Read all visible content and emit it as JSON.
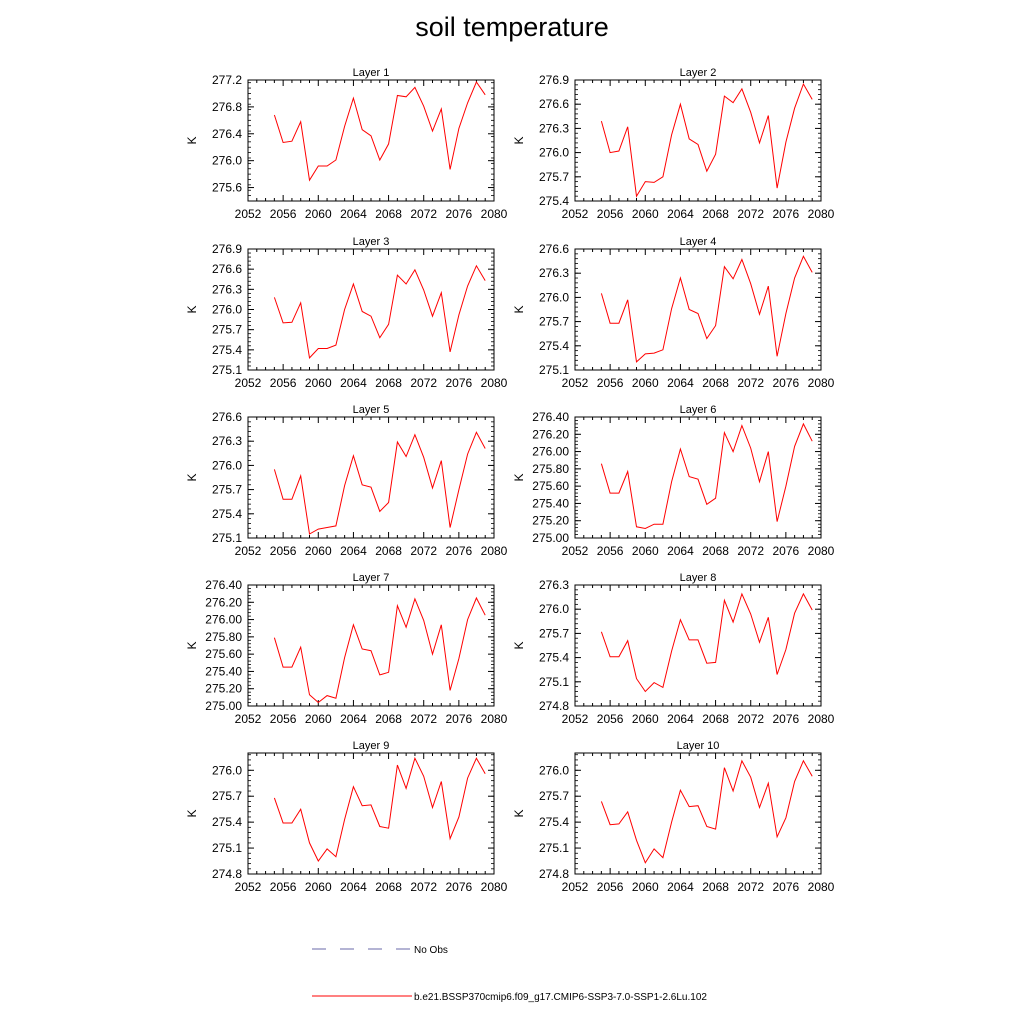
{
  "title": "soil temperature",
  "colors": {
    "model_line": "#ff0000",
    "obs_line": "#6a6aaa",
    "axis": "#000000"
  },
  "legend": {
    "obs_label": "No Obs",
    "model_label": "b.e21.BSSP370cmip6.f09_g17.CMIP6-SSP3-7.0-SSP1-2.6Lu.102"
  },
  "chart_data": [
    {
      "type": "line",
      "title": "Layer 1",
      "ylabel": "K",
      "xlim": [
        2052,
        2080
      ],
      "xticks": [
        "2052",
        "2056",
        "2060",
        "2064",
        "2068",
        "2072",
        "2076",
        "2080"
      ],
      "ylim": [
        275.4,
        277.2
      ],
      "yticks": [
        "275.6",
        "276.0",
        "276.4",
        "276.8",
        "277.2"
      ],
      "x": [
        2055,
        2056,
        2057,
        2058,
        2059,
        2060,
        2061,
        2062,
        2063,
        2064,
        2065,
        2066,
        2067,
        2068,
        2069,
        2070,
        2071,
        2072,
        2073,
        2074,
        2075,
        2076,
        2077,
        2078,
        2079
      ],
      "values": [
        276.68,
        276.27,
        276.29,
        276.58,
        275.71,
        275.92,
        275.92,
        276.01,
        276.51,
        276.93,
        276.46,
        276.37,
        276.01,
        276.25,
        276.97,
        276.95,
        277.09,
        276.81,
        276.44,
        276.77,
        275.87,
        276.48,
        276.86,
        277.17,
        276.98
      ]
    },
    {
      "type": "line",
      "title": "Layer 2",
      "ylabel": "K",
      "xlim": [
        2052,
        2080
      ],
      "xticks": [
        "2052",
        "2056",
        "2060",
        "2064",
        "2068",
        "2072",
        "2076",
        "2080"
      ],
      "ylim": [
        275.4,
        276.9
      ],
      "yticks": [
        "275.4",
        "275.7",
        "276.0",
        "276.3",
        "276.6",
        "276.9"
      ],
      "x": [
        2055,
        2056,
        2057,
        2058,
        2059,
        2060,
        2061,
        2062,
        2063,
        2064,
        2065,
        2066,
        2067,
        2068,
        2069,
        2070,
        2071,
        2072,
        2073,
        2074,
        2075,
        2076,
        2077,
        2078,
        2079
      ],
      "values": [
        276.39,
        276.0,
        276.02,
        276.32,
        275.46,
        275.64,
        275.63,
        275.7,
        276.22,
        276.6,
        276.17,
        276.1,
        275.77,
        275.98,
        276.7,
        276.62,
        276.79,
        276.5,
        276.12,
        276.46,
        275.56,
        276.13,
        276.55,
        276.85,
        276.66
      ]
    },
    {
      "type": "line",
      "title": "Layer 3",
      "ylabel": "K",
      "xlim": [
        2052,
        2080
      ],
      "xticks": [
        "2052",
        "2056",
        "2060",
        "2064",
        "2068",
        "2072",
        "2076",
        "2080"
      ],
      "ylim": [
        275.1,
        276.9
      ],
      "yticks": [
        "275.1",
        "275.4",
        "275.7",
        "276.0",
        "276.3",
        "276.6",
        "276.9"
      ],
      "x": [
        2055,
        2056,
        2057,
        2058,
        2059,
        2060,
        2061,
        2062,
        2063,
        2064,
        2065,
        2066,
        2067,
        2068,
        2069,
        2070,
        2071,
        2072,
        2073,
        2074,
        2075,
        2076,
        2077,
        2078,
        2079
      ],
      "values": [
        276.18,
        275.8,
        275.81,
        276.1,
        275.28,
        275.42,
        275.42,
        275.47,
        276.0,
        276.38,
        275.97,
        275.9,
        275.58,
        275.78,
        276.51,
        276.38,
        276.59,
        276.29,
        275.9,
        276.25,
        275.37,
        275.92,
        276.35,
        276.65,
        276.43
      ]
    },
    {
      "type": "line",
      "title": "Layer 4",
      "ylabel": "K",
      "xlim": [
        2052,
        2080
      ],
      "xticks": [
        "2052",
        "2056",
        "2060",
        "2064",
        "2068",
        "2072",
        "2076",
        "2080"
      ],
      "ylim": [
        275.1,
        276.6
      ],
      "yticks": [
        "275.1",
        "275.4",
        "275.7",
        "276.0",
        "276.3",
        "276.6"
      ],
      "x": [
        2055,
        2056,
        2057,
        2058,
        2059,
        2060,
        2061,
        2062,
        2063,
        2064,
        2065,
        2066,
        2067,
        2068,
        2069,
        2070,
        2071,
        2072,
        2073,
        2074,
        2075,
        2076,
        2077,
        2078,
        2079
      ],
      "values": [
        276.05,
        275.68,
        275.68,
        275.97,
        275.2,
        275.3,
        275.31,
        275.35,
        275.86,
        276.24,
        275.85,
        275.8,
        275.49,
        275.65,
        276.38,
        276.23,
        276.47,
        276.17,
        275.79,
        276.14,
        275.27,
        275.8,
        276.24,
        276.51,
        276.31
      ]
    },
    {
      "type": "line",
      "title": "Layer 5",
      "ylabel": "K",
      "xlim": [
        2052,
        2080
      ],
      "xticks": [
        "2052",
        "2056",
        "2060",
        "2064",
        "2068",
        "2072",
        "2076",
        "2080"
      ],
      "ylim": [
        275.1,
        276.6
      ],
      "yticks": [
        "275.1",
        "275.4",
        "275.7",
        "276.0",
        "276.3",
        "276.6"
      ],
      "x": [
        2055,
        2056,
        2057,
        2058,
        2059,
        2060,
        2061,
        2062,
        2063,
        2064,
        2065,
        2066,
        2067,
        2068,
        2069,
        2070,
        2071,
        2072,
        2073,
        2074,
        2075,
        2076,
        2077,
        2078,
        2079
      ],
      "values": [
        275.95,
        275.58,
        275.58,
        275.87,
        275.15,
        275.21,
        275.23,
        275.25,
        275.75,
        276.12,
        275.76,
        275.73,
        275.43,
        275.54,
        276.29,
        276.11,
        276.38,
        276.1,
        275.72,
        276.06,
        275.23,
        275.7,
        276.14,
        276.41,
        276.21
      ]
    },
    {
      "type": "line",
      "title": "Layer 6",
      "ylabel": "K",
      "xlim": [
        2052,
        2080
      ],
      "xticks": [
        "2052",
        "2056",
        "2060",
        "2064",
        "2068",
        "2072",
        "2076",
        "2080"
      ],
      "ylim": [
        275.0,
        276.4
      ],
      "yticks": [
        "275.00",
        "275.20",
        "275.40",
        "275.60",
        "275.80",
        "276.00",
        "276.20",
        "276.40"
      ],
      "x": [
        2055,
        2056,
        2057,
        2058,
        2059,
        2060,
        2061,
        2062,
        2063,
        2064,
        2065,
        2066,
        2067,
        2068,
        2069,
        2070,
        2071,
        2072,
        2073,
        2074,
        2075,
        2076,
        2077,
        2078,
        2079
      ],
      "values": [
        275.86,
        275.52,
        275.52,
        275.77,
        275.13,
        275.11,
        275.16,
        275.16,
        275.65,
        276.03,
        275.71,
        275.68,
        275.39,
        275.46,
        276.22,
        276.0,
        276.3,
        276.04,
        275.65,
        276.0,
        275.19,
        275.6,
        276.06,
        276.32,
        276.12
      ]
    },
    {
      "type": "line",
      "title": "Layer 7",
      "ylabel": "K",
      "xlim": [
        2052,
        2080
      ],
      "xticks": [
        "2052",
        "2056",
        "2060",
        "2064",
        "2068",
        "2072",
        "2076",
        "2080"
      ],
      "ylim": [
        275.0,
        276.4
      ],
      "yticks": [
        "275.00",
        "275.20",
        "275.40",
        "275.60",
        "275.80",
        "276.00",
        "276.20",
        "276.40"
      ],
      "x": [
        2055,
        2056,
        2057,
        2058,
        2059,
        2060,
        2061,
        2062,
        2063,
        2064,
        2065,
        2066,
        2067,
        2068,
        2069,
        2070,
        2071,
        2072,
        2073,
        2074,
        2075,
        2076,
        2077,
        2078,
        2079
      ],
      "values": [
        275.79,
        275.45,
        275.45,
        275.68,
        275.13,
        275.04,
        275.12,
        275.09,
        275.56,
        275.94,
        275.66,
        275.64,
        275.36,
        275.39,
        276.16,
        275.91,
        276.24,
        275.99,
        275.6,
        275.94,
        275.18,
        275.55,
        276.0,
        276.25,
        276.05
      ]
    },
    {
      "type": "line",
      "title": "Layer 8",
      "ylabel": "K",
      "xlim": [
        2052,
        2080
      ],
      "xticks": [
        "2052",
        "2056",
        "2060",
        "2064",
        "2068",
        "2072",
        "2076",
        "2080"
      ],
      "ylim": [
        274.8,
        276.3
      ],
      "yticks": [
        "274.8",
        "275.1",
        "275.4",
        "275.7",
        "276.0",
        "276.3"
      ],
      "x": [
        2055,
        2056,
        2057,
        2058,
        2059,
        2060,
        2061,
        2062,
        2063,
        2064,
        2065,
        2066,
        2067,
        2068,
        2069,
        2070,
        2071,
        2072,
        2073,
        2074,
        2075,
        2076,
        2077,
        2078,
        2079
      ],
      "values": [
        275.72,
        275.41,
        275.41,
        275.61,
        275.14,
        274.98,
        275.09,
        275.03,
        275.48,
        275.87,
        275.62,
        275.62,
        275.33,
        275.34,
        276.11,
        275.84,
        276.19,
        275.94,
        275.59,
        275.9,
        275.19,
        275.5,
        275.95,
        276.19,
        275.99
      ]
    },
    {
      "type": "line",
      "title": "Layer 9",
      "ylabel": "K",
      "xlim": [
        2052,
        2080
      ],
      "xticks": [
        "2052",
        "2056",
        "2060",
        "2064",
        "2068",
        "2072",
        "2076",
        "2080"
      ],
      "ylim": [
        274.8,
        276.2
      ],
      "yticks": [
        "274.8",
        "275.1",
        "275.4",
        "275.7",
        "276.0"
      ],
      "x": [
        2055,
        2056,
        2057,
        2058,
        2059,
        2060,
        2061,
        2062,
        2063,
        2064,
        2065,
        2066,
        2067,
        2068,
        2069,
        2070,
        2071,
        2072,
        2073,
        2074,
        2075,
        2076,
        2077,
        2078,
        2079
      ],
      "values": [
        275.68,
        275.39,
        275.39,
        275.55,
        275.16,
        274.95,
        275.09,
        275.0,
        275.43,
        275.81,
        275.59,
        275.6,
        275.35,
        275.33,
        276.06,
        275.79,
        276.14,
        275.93,
        275.57,
        275.87,
        275.21,
        275.46,
        275.91,
        276.14,
        275.96
      ]
    },
    {
      "type": "line",
      "title": "Layer 10",
      "ylabel": "K",
      "xlim": [
        2052,
        2080
      ],
      "xticks": [
        "2052",
        "2056",
        "2060",
        "2064",
        "2068",
        "2072",
        "2076",
        "2080"
      ],
      "ylim": [
        274.8,
        276.2
      ],
      "yticks": [
        "274.8",
        "275.1",
        "275.4",
        "275.7",
        "276.0"
      ],
      "x": [
        2055,
        2056,
        2057,
        2058,
        2059,
        2060,
        2061,
        2062,
        2063,
        2064,
        2065,
        2066,
        2067,
        2068,
        2069,
        2070,
        2071,
        2072,
        2073,
        2074,
        2075,
        2076,
        2077,
        2078,
        2079
      ],
      "values": [
        275.64,
        275.37,
        275.38,
        275.52,
        275.19,
        274.93,
        275.09,
        274.99,
        275.4,
        275.77,
        275.58,
        275.59,
        275.35,
        275.32,
        276.03,
        275.76,
        276.11,
        275.92,
        275.57,
        275.85,
        275.23,
        275.45,
        275.87,
        276.11,
        275.93
      ]
    }
  ]
}
